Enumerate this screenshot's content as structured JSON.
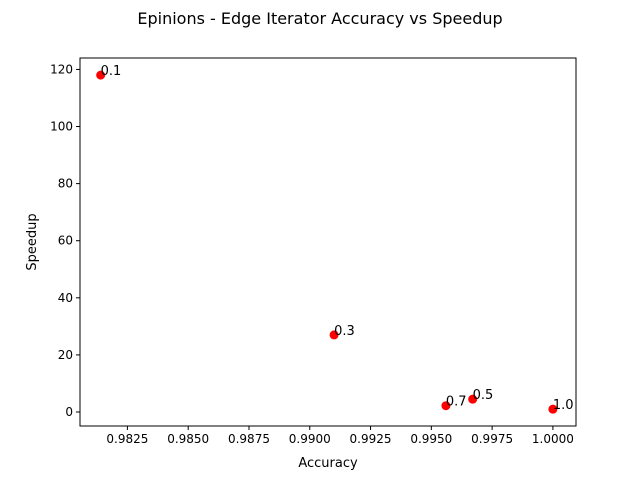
{
  "chart_data": {
    "type": "scatter",
    "title": "Epinions - Edge Iterator Accuracy vs Speedup",
    "xlabel": "Accuracy",
    "ylabel": "Speedup",
    "xlim": [
      0.98055,
      1.00095
    ],
    "ylim": [
      -4.9,
      124.0
    ],
    "xticks": [
      0.9825,
      0.985,
      0.9875,
      0.99,
      0.9925,
      0.995,
      0.9975,
      1.0
    ],
    "xtick_labels": [
      "0.9825",
      "0.9850",
      "0.9875",
      "0.9900",
      "0.9925",
      "0.9950",
      "0.9975",
      "1.0000"
    ],
    "yticks": [
      0,
      20,
      40,
      60,
      80,
      100,
      120
    ],
    "ytick_labels": [
      "0",
      "20",
      "40",
      "60",
      "80",
      "100",
      "120"
    ],
    "grid": false,
    "marker_color": "#ff0000",
    "points": [
      {
        "x": 0.9814,
        "y": 118.0,
        "label": "0.1"
      },
      {
        "x": 0.991,
        "y": 27.0,
        "label": "0.3"
      },
      {
        "x": 0.9967,
        "y": 4.5,
        "label": "0.5"
      },
      {
        "x": 0.9956,
        "y": 2.2,
        "label": "0.7"
      },
      {
        "x": 1.0,
        "y": 1.0,
        "label": "1.0"
      }
    ]
  }
}
